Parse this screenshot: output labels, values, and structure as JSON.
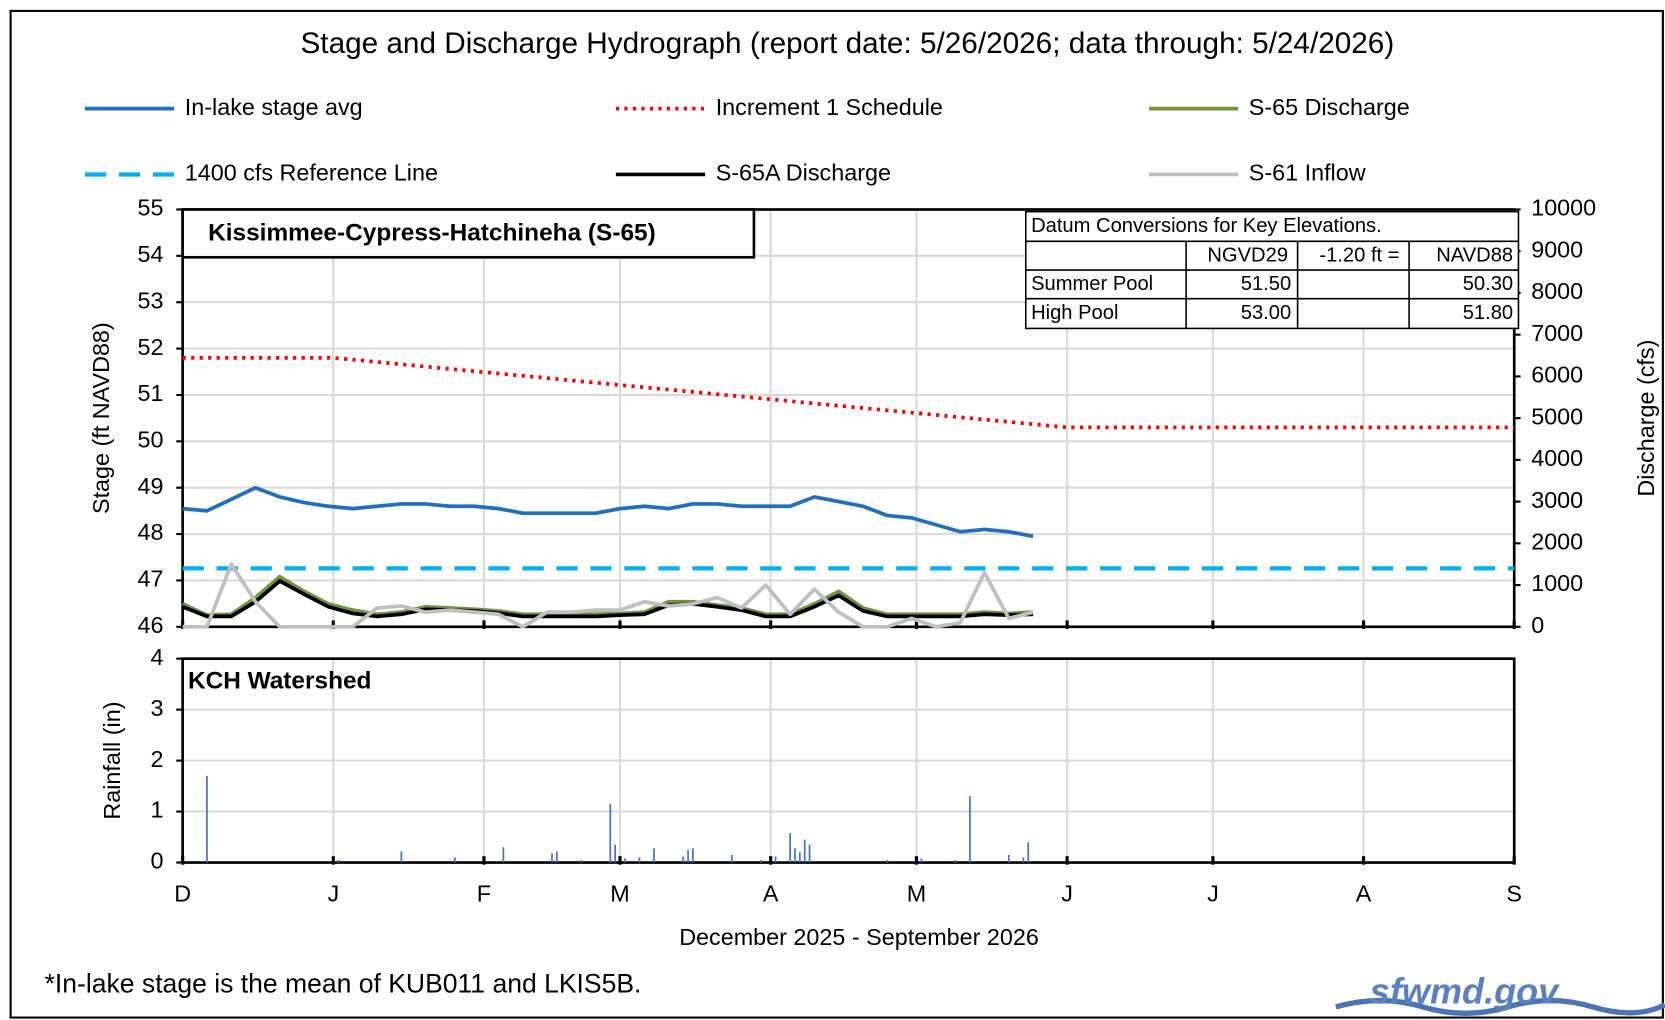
{
  "title": "Stage and Discharge Hydrograph  (report date: 5/26/2026; data through:  5/24/2026)",
  "chart_data": [
    {
      "type": "line",
      "subtitle": "Kissimmee-Cypress-Hatchineha  (S-65)",
      "ylabel": "Stage  (ft NAVD88)",
      "y2label": "Discharge  (cfs)",
      "xlim": [
        0,
        274
      ],
      "ylim": [
        46,
        55
      ],
      "yticks": [
        46,
        47,
        48,
        49,
        50,
        51,
        52,
        53,
        54,
        55
      ],
      "y2lim": [
        0,
        10000
      ],
      "y2ticks": [
        0,
        1000,
        2000,
        3000,
        4000,
        5000,
        6000,
        7000,
        8000,
        9000,
        10000
      ],
      "grid": true,
      "x": [
        0,
        5,
        10,
        15,
        20,
        25,
        30,
        35,
        40,
        45,
        50,
        55,
        60,
        65,
        70,
        75,
        80,
        85,
        90,
        95,
        100,
        105,
        110,
        115,
        120,
        125,
        130,
        135,
        140,
        145,
        150,
        155,
        160,
        165,
        170,
        175
      ],
      "series": [
        {
          "name": "In-lake stage avg",
          "color": "#1f6fc0",
          "values": [
            48.55,
            48.5,
            48.75,
            49.0,
            48.8,
            48.68,
            48.6,
            48.55,
            48.6,
            48.65,
            48.65,
            48.6,
            48.6,
            48.55,
            48.45,
            48.45,
            48.45,
            48.45,
            48.55,
            48.6,
            48.55,
            48.65,
            48.65,
            48.6,
            48.6,
            48.6,
            48.8,
            48.7,
            48.6,
            48.4,
            48.35,
            48.2,
            48.05,
            48.1,
            48.05,
            47.95
          ]
        },
        {
          "name": "Increment 1 Schedule",
          "color": "#ff0000",
          "dash": "dotted",
          "x": [
            0,
            31,
            182,
            274
          ],
          "values": [
            51.8,
            51.8,
            50.3,
            50.3
          ]
        },
        {
          "name": "S-65 Discharge",
          "color": "#70943a",
          "axis": "y2",
          "values": [
            550,
            280,
            300,
            700,
            1200,
            850,
            550,
            400,
            300,
            350,
            480,
            450,
            420,
            380,
            300,
            300,
            300,
            300,
            320,
            350,
            600,
            600,
            520,
            450,
            300,
            300,
            550,
            850,
            450,
            300,
            300,
            300,
            300,
            350,
            320,
            350
          ]
        },
        {
          "name": "1400 cfs Reference Line",
          "color": "#00b0f0",
          "dash": "dashed",
          "axis": "y2",
          "x": [
            0,
            274
          ],
          "values": [
            1400,
            1400
          ]
        },
        {
          "name": "S-65A Discharge",
          "color": "#000000",
          "axis": "y2",
          "values": [
            480,
            250,
            250,
            600,
            1100,
            780,
            480,
            320,
            250,
            300,
            420,
            400,
            380,
            330,
            250,
            250,
            250,
            250,
            280,
            300,
            520,
            550,
            480,
            400,
            250,
            250,
            480,
            750,
            380,
            250,
            250,
            250,
            250,
            300,
            280,
            300
          ]
        },
        {
          "name": "S-61 Inflow",
          "color": "#bfbfbf",
          "axis": "y2",
          "values": [
            0,
            0,
            1500,
            600,
            0,
            0,
            0,
            0,
            450,
            500,
            350,
            400,
            350,
            300,
            0,
            350,
            350,
            400,
            400,
            600,
            500,
            550,
            700,
            450,
            1000,
            300,
            900,
            350,
            0,
            0,
            200,
            0,
            100,
            1300,
            200,
            350
          ]
        }
      ]
    },
    {
      "type": "bar",
      "subtitle": "KCH Watershed",
      "ylabel": "Rainfall  (in)",
      "xlabel": "December 2025 - September 2026",
      "xlim": [
        0,
        274
      ],
      "ylim": [
        0,
        4
      ],
      "yticks": [
        0,
        1,
        2,
        3,
        4
      ],
      "grid": true,
      "color": "#4472c4",
      "xticks": [
        {
          "value": 0,
          "label": "D"
        },
        {
          "value": 31,
          "label": "J"
        },
        {
          "value": 62,
          "label": "F"
        },
        {
          "value": 90,
          "label": "M"
        },
        {
          "value": 121,
          "label": "A"
        },
        {
          "value": 151,
          "label": "M"
        },
        {
          "value": 182,
          "label": "J"
        },
        {
          "value": 212,
          "label": "J"
        },
        {
          "value": 243,
          "label": "A"
        },
        {
          "value": 274,
          "label": "S"
        }
      ],
      "x": [
        5,
        32,
        45,
        56,
        66,
        76,
        77,
        82,
        88,
        89,
        91,
        94,
        97,
        103,
        104,
        105,
        113,
        119,
        122,
        125,
        126,
        127,
        128,
        129,
        145,
        152,
        159,
        162,
        170,
        173,
        174
      ],
      "values": [
        1.7,
        0.05,
        0.22,
        0.1,
        0.3,
        0.18,
        0.22,
        0.05,
        1.15,
        0.35,
        0.08,
        0.1,
        0.28,
        0.12,
        0.25,
        0.28,
        0.15,
        0.05,
        0.12,
        0.58,
        0.28,
        0.2,
        0.45,
        0.35,
        0.05,
        0.08,
        0.05,
        1.3,
        0.15,
        0.1,
        0.4
      ]
    }
  ],
  "datum_table": {
    "title": "Datum Conversions for Key Elevations.",
    "header": [
      "NGVD29",
      "-1.20 ft =",
      "NAVD88"
    ],
    "rows": [
      [
        "Summer Pool",
        "51.50",
        "50.30"
      ],
      [
        "High Pool",
        "53.00",
        "51.80"
      ]
    ]
  },
  "footnote": "*In-lake stage is the mean of KUB011 and LKIS5B.",
  "logo": "sfwmd.gov"
}
